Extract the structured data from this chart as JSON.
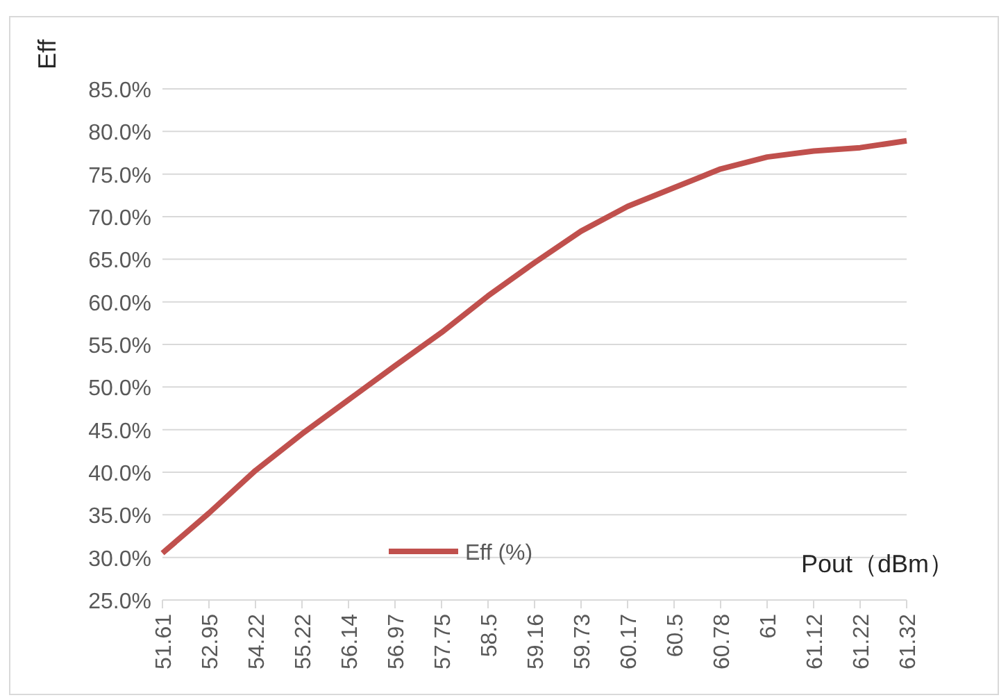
{
  "chart_data": {
    "type": "line",
    "xlabel": "Pout（dBm）",
    "ylabel": "Eff",
    "categories": [
      "51.61",
      "52.95",
      "54.22",
      "55.22",
      "56.14",
      "56.97",
      "57.75",
      "58.5",
      "59.16",
      "59.73",
      "60.17",
      "60.5",
      "60.78",
      "61",
      "61.12",
      "61.22",
      "61.32"
    ],
    "series": [
      {
        "name": "Eff (%)",
        "color": "#c0504d",
        "values": [
          30.5,
          35.2,
          40.2,
          44.5,
          48.5,
          52.5,
          56.4,
          60.7,
          64.6,
          68.3,
          71.2,
          73.4,
          75.6,
          77.0,
          77.7,
          78.1,
          78.9
        ]
      }
    ],
    "ylim": [
      25,
      85
    ],
    "yticks": [
      {
        "value": 25,
        "label": "25.0%"
      },
      {
        "value": 30,
        "label": "30.0%"
      },
      {
        "value": 35,
        "label": "35.0%"
      },
      {
        "value": 40,
        "label": "40.0%"
      },
      {
        "value": 45,
        "label": "45.0%"
      },
      {
        "value": 50,
        "label": "50.0%"
      },
      {
        "value": 55,
        "label": "55.0%"
      },
      {
        "value": 60,
        "label": "60.0%"
      },
      {
        "value": 65,
        "label": "65.0%"
      },
      {
        "value": 70,
        "label": "70.0%"
      },
      {
        "value": 75,
        "label": "75.0%"
      },
      {
        "value": 80,
        "label": "80.0%"
      },
      {
        "value": 85,
        "label": "85.0%"
      }
    ],
    "grid": "y",
    "legend": "bottom",
    "marker": "none",
    "line_style": "solid"
  }
}
